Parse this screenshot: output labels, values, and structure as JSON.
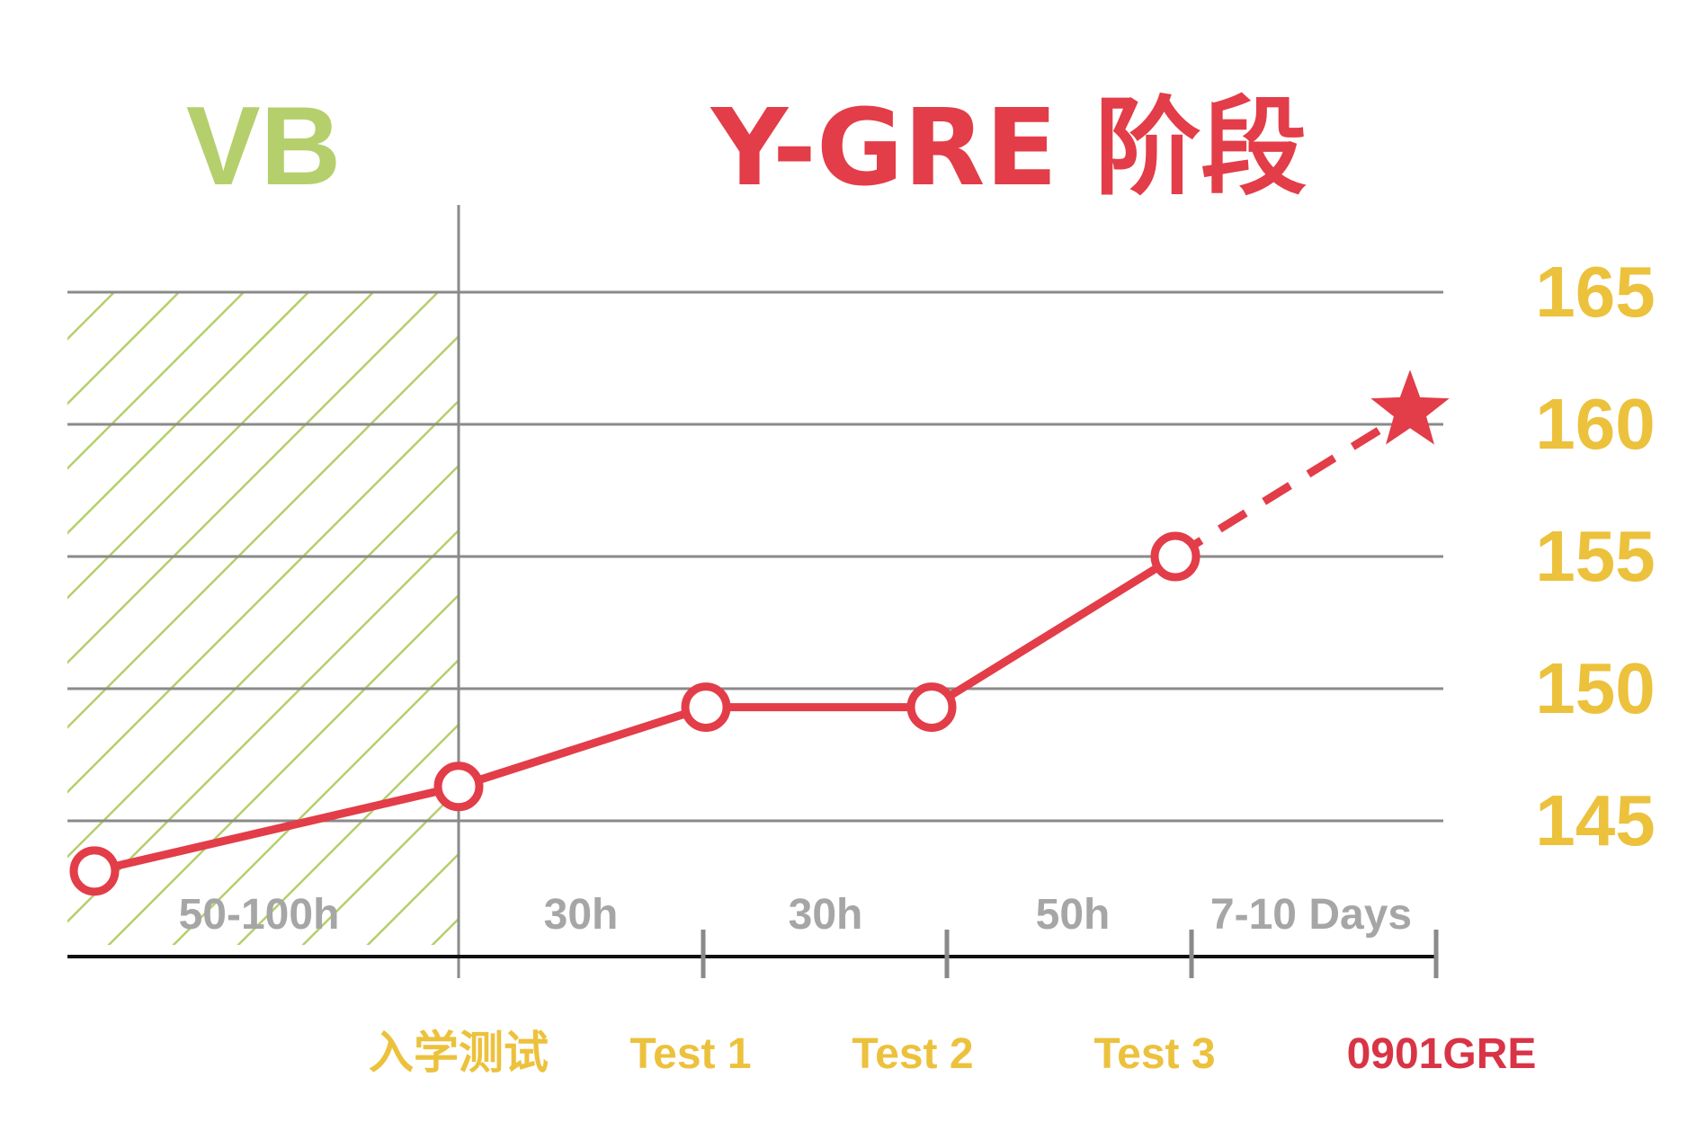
{
  "chart_data": {
    "type": "line",
    "phase_labels": {
      "left": "VB",
      "right": "Y-GRE 阶段"
    },
    "y_ticks": [
      145,
      150,
      155,
      160,
      165
    ],
    "ylim": [
      140,
      165
    ],
    "duration_labels": [
      "50-100h",
      "30h",
      "30h",
      "50h",
      "7-10 Days"
    ],
    "milestone_labels": [
      "入学测试",
      "Test 1",
      "Test 2",
      "Test 3",
      "0901GRE"
    ],
    "series": [
      {
        "points": [
          {
            "x": 0,
            "y": 143.1
          },
          {
            "x": 1,
            "y": 146.3
          },
          {
            "x": 2,
            "y": 149.3
          },
          {
            "x": 3,
            "y": 149.3
          },
          {
            "x": 4,
            "y": 155.0
          }
        ],
        "projection": {
          "x": 5,
          "y": 160.5
        }
      }
    ],
    "colors": {
      "line": "#e23d48",
      "vb": "#b5cf6c",
      "ticks": "#ecc13c",
      "gridline": "#8a8a8a",
      "axis": "#111111",
      "duration": "#a6a6a6",
      "final": "#d93446"
    }
  }
}
